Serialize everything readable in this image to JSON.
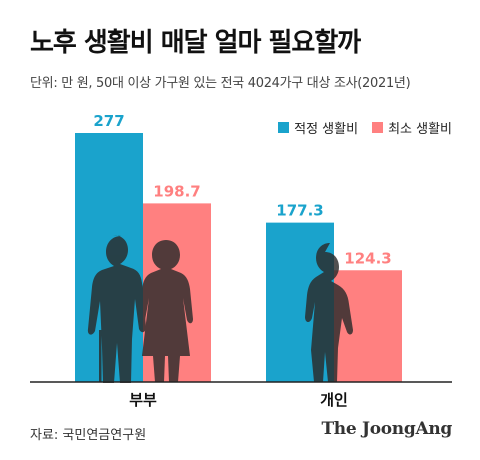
{
  "title": "노후 생활비 매달 얼마 필요할까",
  "subtitle": "단위: 만 원, 50대 이상 가구원 있는 전국 4024가구 대상 조사(2021년)",
  "source": "자료: 국민연금연구원",
  "brand": "The JoongAng",
  "colors": {
    "adequate": "#1aa3cc",
    "minimum": "#ff8080",
    "silhouette": "#2b2b2b"
  },
  "chart_data": {
    "type": "bar",
    "categories": [
      "부부",
      "개인"
    ],
    "series": [
      {
        "name": "적정 생활비",
        "values": [
          277,
          177.3
        ],
        "labels": [
          "277",
          "177.3"
        ]
      },
      {
        "name": "최소 생활비",
        "values": [
          198.7,
          124.3
        ],
        "labels": [
          "198.7",
          "124.3"
        ]
      }
    ],
    "legend_position": "top-right",
    "ylim": [
      0,
      277
    ],
    "grid": false
  }
}
